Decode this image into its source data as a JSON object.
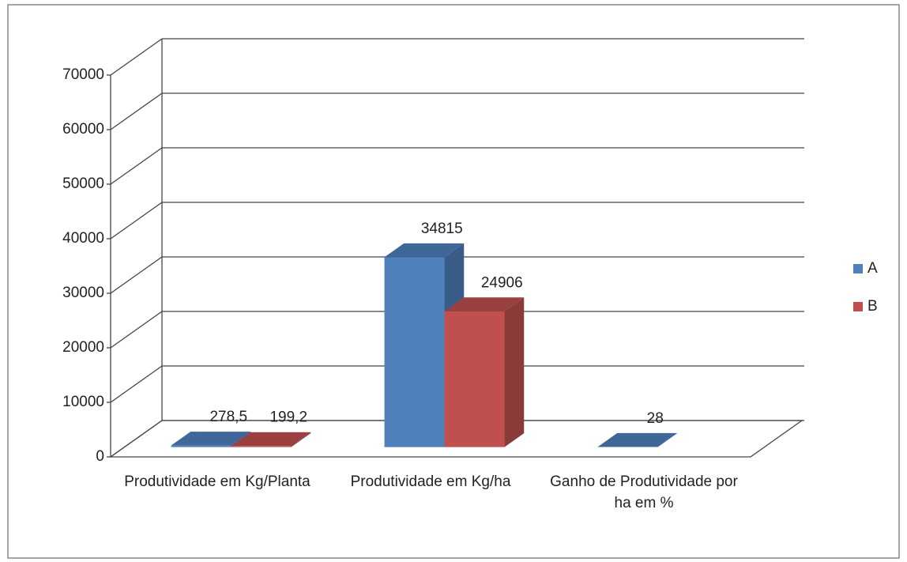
{
  "chart_data": {
    "type": "bar3d",
    "categories": [
      "Produtividade em Kg/Planta",
      "Produtividade em Kg/ha",
      "Ganho de Produtividade por ha em %"
    ],
    "series": [
      {
        "name": "A",
        "color": "#4f81bd",
        "values": [
          278.5,
          34815,
          28
        ],
        "value_labels": [
          "278,5",
          "34815",
          "28"
        ]
      },
      {
        "name": "B",
        "color": "#c0504d",
        "values": [
          199.2,
          24906,
          null
        ],
        "value_labels": [
          "199,2",
          "24906",
          null
        ]
      }
    ],
    "ylim": [
      0,
      70000
    ],
    "yticks": [
      0,
      10000,
      20000,
      30000,
      40000,
      50000,
      60000,
      70000
    ],
    "grid": true,
    "legend": "right"
  }
}
